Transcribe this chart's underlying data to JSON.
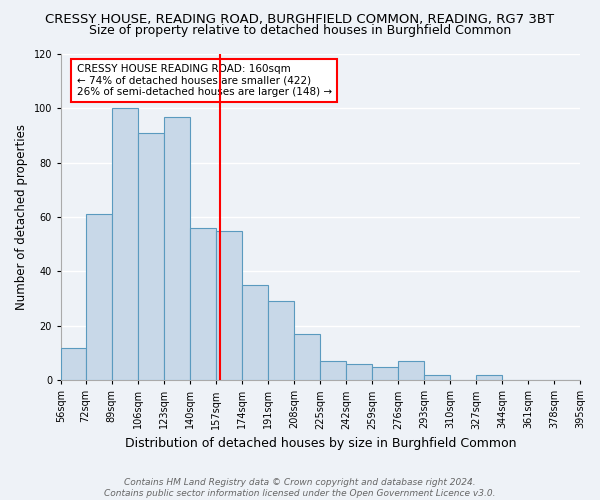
{
  "title": "CRESSY HOUSE, READING ROAD, BURGHFIELD COMMON, READING, RG7 3BT",
  "subtitle": "Size of property relative to detached houses in Burghfield Common",
  "xlabel": "Distribution of detached houses by size in Burghfield Common",
  "ylabel": "Number of detached properties",
  "bar_edges": [
    56,
    72,
    89,
    106,
    123,
    140,
    157,
    174,
    191,
    208,
    225,
    242,
    259,
    276,
    293,
    310,
    327,
    344,
    361,
    378,
    395
  ],
  "bar_heights": [
    12,
    61,
    100,
    91,
    97,
    56,
    55,
    35,
    29,
    17,
    7,
    6,
    5,
    7,
    2,
    0,
    2,
    0,
    0,
    0
  ],
  "bar_color": "#c8d8e8",
  "bar_edgecolor": "#5a9abf",
  "vline_x": 160,
  "vline_color": "red",
  "ylim": [
    0,
    120
  ],
  "yticks": [
    0,
    20,
    40,
    60,
    80,
    100,
    120
  ],
  "annotation_line1": "CRESSY HOUSE READING ROAD: 160sqm",
  "annotation_line2": "← 74% of detached houses are smaller (422)",
  "annotation_line3": "26% of semi-detached houses are larger (148) →",
  "footnote": "Contains HM Land Registry data © Crown copyright and database right 2024.\nContains public sector information licensed under the Open Government Licence v3.0.",
  "background_color": "#eef2f7",
  "plot_background": "#eef2f7",
  "title_fontsize": 9.5,
  "subtitle_fontsize": 9,
  "xlabel_fontsize": 9,
  "ylabel_fontsize": 8.5,
  "tick_label_fontsize": 7,
  "annotation_fontsize": 7.5,
  "footnote_fontsize": 6.5
}
